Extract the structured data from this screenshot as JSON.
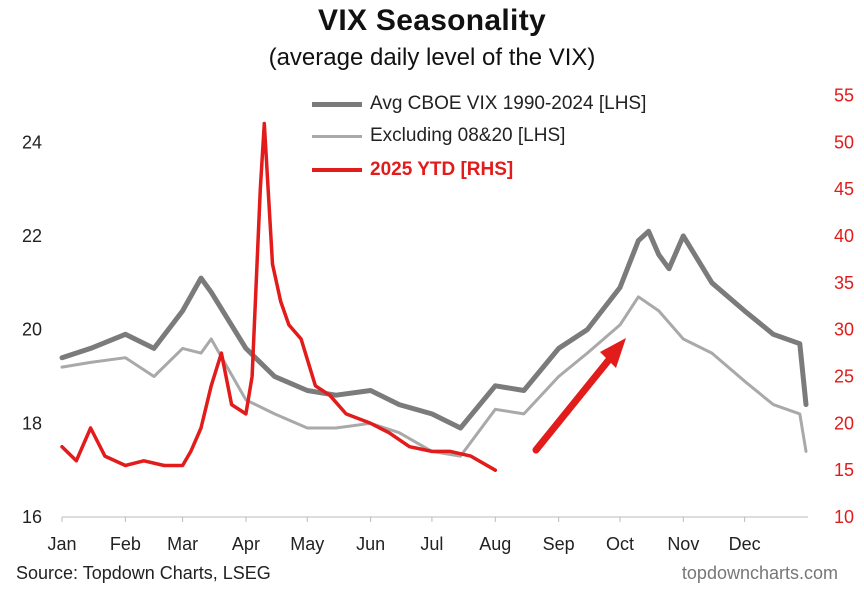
{
  "header": {
    "title": "VIX Seasonality",
    "subtitle": "(average daily level of the VIX)"
  },
  "footer": {
    "source": "Source: Topdown Charts, LSEG",
    "brand": "topdowncharts.com"
  },
  "chart_data": {
    "type": "line",
    "title": "VIX Seasonality",
    "subtitle": "(average daily level of the VIX)",
    "legend_position": "top-center",
    "grid": false,
    "x_axis": {
      "ticks": [
        "Jan",
        "Feb",
        "Mar",
        "Apr",
        "May",
        "Jun",
        "Jul",
        "Aug",
        "Sep",
        "Oct",
        "Nov",
        "Dec"
      ]
    },
    "y_left": {
      "range": [
        16,
        25.5
      ],
      "ticks": [
        16,
        18,
        20,
        22,
        24
      ]
    },
    "y_right": {
      "range": [
        10,
        57.5
      ],
      "ticks": [
        10,
        15,
        20,
        25,
        30,
        35,
        40,
        45,
        50,
        55
      ],
      "color": "#e21b1b"
    },
    "series": [
      {
        "name": "Avg CBOE VIX 1990-2024 [LHS]",
        "axis": "left",
        "color": "#7b7b7b",
        "x": [
          "Jan 1",
          "Jan 15",
          "Feb 1",
          "Feb 15",
          "Mar 1",
          "Mar 10",
          "Mar 15",
          "Apr 1",
          "Apr 15",
          "May 1",
          "May 15",
          "Jun 1",
          "Jun 15",
          "Jul 1",
          "Jul 15",
          "Aug 1",
          "Aug 15",
          "Sep 1",
          "Sep 15",
          "Oct 1",
          "Oct 10",
          "Oct 15",
          "Oct 20",
          "Oct 25",
          "Nov 1",
          "Nov 15",
          "Dec 1",
          "Dec 15",
          "Dec 28",
          "Dec 31"
        ],
        "y": [
          19.4,
          19.6,
          19.9,
          19.6,
          20.4,
          21.1,
          20.8,
          19.6,
          19.0,
          18.7,
          18.6,
          18.7,
          18.4,
          18.2,
          17.9,
          18.8,
          18.7,
          19.6,
          20.0,
          20.9,
          21.9,
          22.1,
          21.6,
          21.3,
          22.0,
          21.0,
          20.4,
          19.9,
          19.7,
          18.4
        ]
      },
      {
        "name": "Excluding 08&20 [LHS]",
        "axis": "left",
        "color": "#a9a9a9",
        "x": [
          "Jan 1",
          "Jan 15",
          "Feb 1",
          "Feb 15",
          "Mar 1",
          "Mar 10",
          "Mar 15",
          "Apr 1",
          "Apr 15",
          "May 1",
          "May 15",
          "Jun 1",
          "Jun 15",
          "Jul 1",
          "Jul 15",
          "Aug 1",
          "Aug 15",
          "Sep 1",
          "Sep 15",
          "Oct 1",
          "Oct 10",
          "Oct 20",
          "Nov 1",
          "Nov 15",
          "Dec 1",
          "Dec 15",
          "Dec 28",
          "Dec 31"
        ],
        "y": [
          19.2,
          19.3,
          19.4,
          19.0,
          19.6,
          19.5,
          19.8,
          18.5,
          18.2,
          17.9,
          17.9,
          18.0,
          17.8,
          17.4,
          17.3,
          18.3,
          18.2,
          19.0,
          19.5,
          20.1,
          20.7,
          20.4,
          19.8,
          19.5,
          18.9,
          18.4,
          18.2,
          17.4
        ]
      },
      {
        "name": "2025 YTD [RHS]",
        "axis": "right",
        "color": "#e21b1b",
        "x": [
          "Jan 1",
          "Jan 8",
          "Jan 15",
          "Jan 22",
          "Feb 1",
          "Feb 10",
          "Feb 20",
          "Mar 1",
          "Mar 5",
          "Mar 10",
          "Mar 15",
          "Mar 20",
          "Mar 25",
          "Apr 1",
          "Apr 4",
          "Apr 8",
          "Apr 10",
          "Apr 14",
          "Apr 18",
          "Apr 22",
          "Apr 28",
          "May 5",
          "May 12",
          "May 20",
          "Jun 1",
          "Jun 10",
          "Jun 20",
          "Jul 1",
          "Jul 10",
          "Jul 20",
          "Aug 1"
        ],
        "y": [
          17.5,
          16.0,
          19.5,
          16.5,
          15.5,
          16.0,
          15.5,
          15.5,
          17.0,
          19.5,
          24.0,
          27.5,
          22.0,
          21.0,
          25.0,
          45.0,
          52.0,
          37.0,
          33.0,
          30.5,
          29.0,
          24.0,
          23.0,
          21.0,
          20.0,
          19.0,
          17.5,
          17.0,
          17.0,
          16.5,
          15.0
        ]
      }
    ]
  }
}
